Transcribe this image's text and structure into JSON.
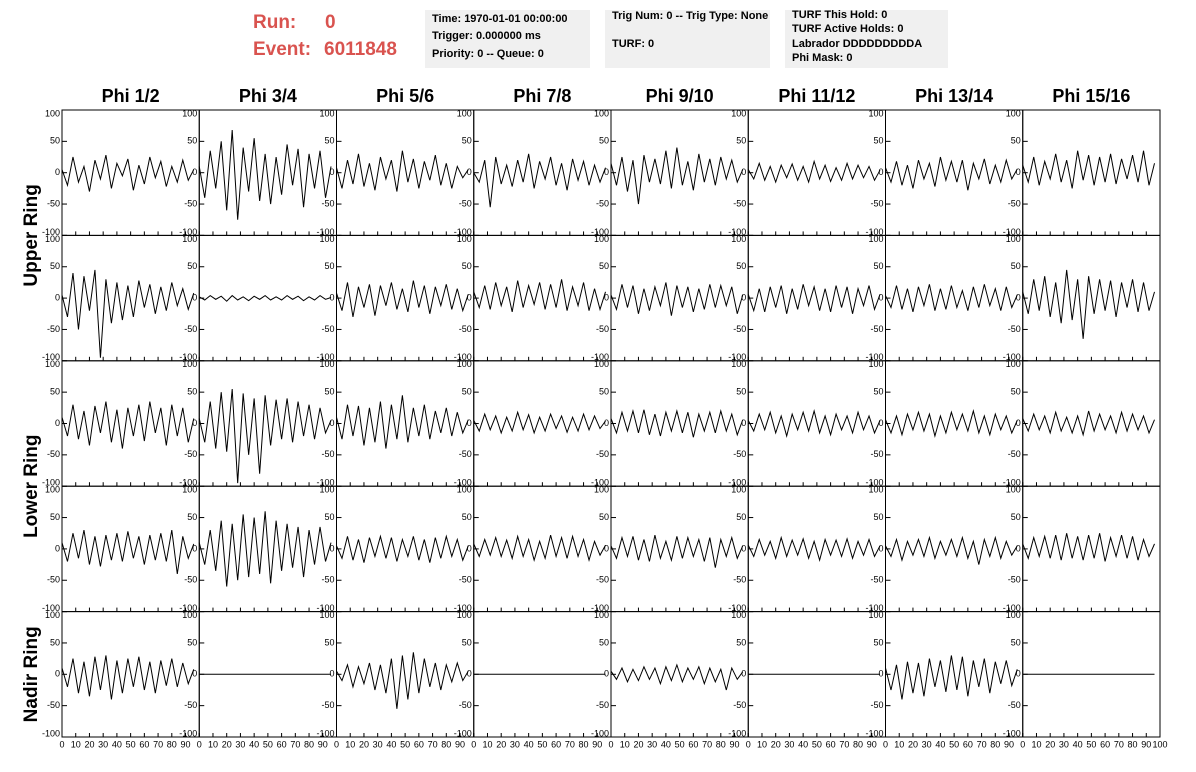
{
  "header": {
    "run_label": "Run:",
    "run": 0,
    "event_label": "Event:",
    "event": 6011848,
    "info_boxes": [
      [
        "Time: 1970-01-01 00:00:00",
        "Trigger: 0.000000 ms",
        "Priority: 0 -- Queue: 0"
      ],
      [
        "Trig Num: 0 -- Trig Type: None",
        "TURF: 0"
      ],
      [
        "TURF This Hold: 0",
        "TURF Active Holds: 0",
        "Labrador DDDDDDDDDA",
        "Phi Mask: 0"
      ]
    ]
  },
  "chart_data": {
    "type": "line",
    "columns": [
      "Phi 1/2",
      "Phi 3/4",
      "Phi 5/6",
      "Phi 7/8",
      "Phi 9/10",
      "Phi 11/12",
      "Phi 13/14",
      "Phi 15/16"
    ],
    "row_labels": [
      "Upper Ring",
      "Lower Ring",
      "Nadir Ring"
    ],
    "color": "#000000",
    "xlim": [
      0,
      100
    ],
    "xticks": [
      0,
      10,
      20,
      30,
      40,
      50,
      60,
      70,
      80,
      90,
      100
    ],
    "ylim": [
      -100,
      100
    ],
    "yticks": [
      -100,
      -50,
      0,
      50,
      100
    ],
    "x": [
      0,
      4,
      8,
      12,
      16,
      20,
      24,
      28,
      32,
      36,
      40,
      44,
      48,
      52,
      56,
      60,
      64,
      68,
      72,
      76,
      80,
      84,
      88,
      92,
      96
    ],
    "series": [
      {
        "values": [
          5,
          -20,
          25,
          -15,
          10,
          -30,
          20,
          -10,
          28,
          -25,
          15,
          -5,
          22,
          -28,
          12,
          -18,
          25,
          -8,
          18,
          -22,
          10,
          -15,
          20,
          -12,
          5
        ]
      },
      {
        "values": [
          10,
          -40,
          35,
          -25,
          50,
          -60,
          68,
          -75,
          40,
          -30,
          55,
          -45,
          30,
          -50,
          25,
          -35,
          45,
          -20,
          38,
          -55,
          30,
          -25,
          35,
          -40,
          10
        ]
      },
      {
        "values": [
          8,
          -25,
          20,
          -18,
          30,
          -22,
          15,
          -28,
          25,
          -10,
          20,
          -30,
          35,
          -15,
          22,
          -25,
          18,
          -12,
          28,
          -20,
          15,
          -25,
          10,
          -8,
          5
        ]
      },
      {
        "values": [
          0,
          -15,
          20,
          -55,
          25,
          -18,
          12,
          -22,
          20,
          -15,
          30,
          -25,
          18,
          -10,
          25,
          -20,
          15,
          -28,
          22,
          -12,
          18,
          -20,
          12,
          -15,
          8
        ]
      },
      {
        "values": [
          15,
          -20,
          25,
          -30,
          20,
          -50,
          28,
          -15,
          22,
          -18,
          35,
          -25,
          40,
          -20,
          18,
          -28,
          30,
          -15,
          22,
          -20,
          25,
          -10,
          20,
          -15,
          5
        ]
      },
      {
        "values": [
          5,
          -10,
          15,
          -12,
          10,
          -15,
          12,
          -8,
          14,
          -12,
          10,
          -15,
          18,
          -10,
          12,
          -14,
          8,
          -12,
          15,
          -10,
          12,
          -8,
          10,
          -12,
          4
        ]
      },
      {
        "values": [
          8,
          -15,
          18,
          -20,
          12,
          -25,
          20,
          -10,
          15,
          -22,
          25,
          -12,
          18,
          -15,
          20,
          -28,
          15,
          -10,
          22,
          -18,
          12,
          -15,
          20,
          -10,
          6
        ]
      },
      {
        "values": [
          12,
          -15,
          25,
          -20,
          18,
          -10,
          30,
          -15,
          20,
          -25,
          35,
          -12,
          28,
          -20,
          25,
          -15,
          30,
          -18,
          22,
          -10,
          28,
          -15,
          35,
          -20,
          15
        ]
      },
      {
        "values": [
          5,
          -30,
          40,
          -50,
          35,
          -20,
          45,
          -95,
          30,
          -40,
          25,
          -35,
          20,
          -30,
          28,
          -15,
          22,
          -25,
          18,
          -20,
          25,
          -12,
          15,
          -18,
          8
        ]
      },
      {
        "values": [
          2,
          -3,
          4,
          -2,
          3,
          -5,
          4,
          -3,
          2,
          -4,
          3,
          -2,
          4,
          -3,
          2,
          -3,
          4,
          -2,
          3,
          -4,
          2,
          -3,
          4,
          -2,
          1
        ]
      },
      {
        "values": [
          8,
          -20,
          25,
          -30,
          18,
          -15,
          22,
          -28,
          20,
          -12,
          25,
          -18,
          15,
          -22,
          28,
          -15,
          20,
          -25,
          18,
          -12,
          22,
          -18,
          15,
          -20,
          6
        ]
      },
      {
        "values": [
          10,
          -15,
          20,
          -18,
          25,
          -12,
          18,
          -22,
          28,
          -15,
          20,
          -10,
          25,
          -18,
          22,
          -15,
          30,
          -20,
          18,
          -12,
          25,
          -20,
          15,
          -18,
          10
        ]
      },
      {
        "values": [
          5,
          -18,
          22,
          -15,
          20,
          -25,
          15,
          -20,
          18,
          -12,
          25,
          -28,
          20,
          -15,
          18,
          -22,
          15,
          -18,
          22,
          -15,
          20,
          -12,
          18,
          -25,
          5
        ]
      },
      {
        "values": [
          6,
          -20,
          15,
          -22,
          18,
          -15,
          20,
          -25,
          15,
          -18,
          22,
          -12,
          18,
          -20,
          15,
          -22,
          20,
          -15,
          18,
          -25,
          15,
          -12,
          20,
          -18,
          6
        ]
      },
      {
        "values": [
          4,
          -15,
          20,
          -18,
          15,
          -22,
          18,
          -12,
          22,
          -20,
          15,
          -18,
          20,
          -15,
          12,
          -20,
          18,
          -15,
          22,
          -12,
          15,
          -20,
          18,
          -15,
          5
        ]
      },
      {
        "values": [
          10,
          -25,
          30,
          -20,
          35,
          -30,
          25,
          -40,
          45,
          -35,
          30,
          -65,
          35,
          -25,
          30,
          -20,
          28,
          -30,
          25,
          -15,
          30,
          -22,
          25,
          -20,
          10
        ]
      },
      {
        "values": [
          10,
          -20,
          30,
          -25,
          20,
          -35,
          28,
          -15,
          35,
          -30,
          22,
          -40,
          25,
          -20,
          30,
          -28,
          35,
          -15,
          25,
          -35,
          30,
          -20,
          25,
          -30,
          8
        ]
      },
      {
        "values": [
          8,
          -30,
          35,
          -40,
          50,
          -45,
          55,
          -95,
          48,
          -50,
          40,
          -80,
          45,
          -35,
          38,
          -25,
          40,
          -30,
          35,
          -20,
          30,
          -25,
          25,
          -15,
          5
        ]
      },
      {
        "values": [
          10,
          -25,
          30,
          -20,
          28,
          -35,
          25,
          -30,
          35,
          -40,
          30,
          -25,
          45,
          -30,
          25,
          -20,
          30,
          -25,
          20,
          -15,
          25,
          -20,
          18,
          -15,
          6
        ]
      },
      {
        "values": [
          5,
          -12,
          15,
          -10,
          12,
          -15,
          10,
          -12,
          18,
          -10,
          14,
          -15,
          10,
          -12,
          15,
          -8,
          12,
          -14,
          10,
          -12,
          15,
          -10,
          12,
          -8,
          4
        ]
      },
      {
        "values": [
          8,
          -15,
          18,
          -12,
          20,
          -15,
          22,
          -18,
          15,
          -20,
          18,
          -12,
          20,
          -15,
          18,
          -22,
          15,
          -12,
          18,
          -15,
          20,
          -12,
          15,
          -18,
          6
        ]
      },
      {
        "values": [
          5,
          -12,
          15,
          -10,
          18,
          -15,
          12,
          -20,
          15,
          -10,
          18,
          -12,
          20,
          -15,
          12,
          -18,
          15,
          -10,
          12,
          -15,
          18,
          -10,
          12,
          -15,
          5
        ]
      },
      {
        "values": [
          6,
          -15,
          12,
          -18,
          15,
          -10,
          18,
          -12,
          15,
          -20,
          12,
          -15,
          18,
          -10,
          15,
          -12,
          20,
          -15,
          12,
          -18,
          15,
          -10,
          12,
          -15,
          5
        ]
      },
      {
        "values": [
          8,
          -12,
          15,
          -10,
          12,
          -15,
          18,
          -12,
          10,
          -15,
          12,
          -18,
          20,
          -12,
          15,
          -10,
          12,
          -15,
          18,
          -12,
          15,
          -10,
          12,
          -15,
          6
        ]
      },
      {
        "values": [
          10,
          -20,
          25,
          -15,
          30,
          -25,
          20,
          -28,
          22,
          -18,
          25,
          -20,
          28,
          -15,
          20,
          -25,
          22,
          -18,
          25,
          -20,
          30,
          -40,
          20,
          -15,
          8
        ]
      },
      {
        "values": [
          10,
          -25,
          30,
          -35,
          45,
          -60,
          40,
          -50,
          55,
          -45,
          50,
          -40,
          60,
          -55,
          45,
          -35,
          40,
          -30,
          35,
          -45,
          30,
          -25,
          35,
          -20,
          10
        ]
      },
      {
        "values": [
          5,
          -15,
          20,
          -18,
          15,
          -22,
          18,
          -12,
          20,
          -15,
          18,
          -20,
          15,
          -12,
          20,
          -18,
          15,
          -22,
          18,
          -15,
          20,
          -12,
          15,
          -18,
          5
        ]
      },
      {
        "values": [
          8,
          -12,
          15,
          -10,
          18,
          -12,
          14,
          -15,
          20,
          -12,
          15,
          -18,
          12,
          -15,
          22,
          -12,
          18,
          -15,
          20,
          -12,
          15,
          -18,
          12,
          -10,
          6
        ]
      },
      {
        "values": [
          5,
          -15,
          18,
          -12,
          20,
          -18,
          15,
          -20,
          22,
          -15,
          12,
          -18,
          20,
          -15,
          18,
          -12,
          15,
          -20,
          18,
          -30,
          15,
          -12,
          18,
          -15,
          5
        ]
      },
      {
        "values": [
          6,
          -12,
          15,
          -10,
          12,
          -15,
          18,
          -12,
          14,
          -10,
          16,
          -15,
          12,
          -18,
          15,
          -10,
          14,
          -12,
          16,
          -15,
          12,
          -10,
          15,
          -12,
          5
        ]
      },
      {
        "values": [
          5,
          -12,
          15,
          -18,
          12,
          -10,
          15,
          -12,
          18,
          -15,
          12,
          -10,
          15,
          -12,
          18,
          -15,
          12,
          -25,
          15,
          -12,
          18,
          -15,
          12,
          -10,
          5
        ]
      },
      {
        "values": [
          8,
          -15,
          18,
          -12,
          20,
          -15,
          22,
          -18,
          25,
          -15,
          20,
          -18,
          22,
          -15,
          25,
          -20,
          18,
          -12,
          22,
          -15,
          20,
          -18,
          15,
          -12,
          8
        ]
      },
      {
        "values": [
          10,
          -20,
          25,
          -30,
          20,
          -35,
          28,
          -25,
          30,
          -40,
          22,
          -30,
          25,
          -20,
          28,
          -25,
          20,
          -30,
          22,
          -18,
          25,
          -20,
          18,
          -15,
          8
        ]
      },
      {
        "values": [
          0,
          0,
          0,
          0,
          0,
          0,
          0,
          0,
          0,
          0,
          0,
          0,
          0,
          0,
          0,
          0,
          0,
          0,
          0,
          0,
          0,
          0,
          0,
          0,
          0
        ]
      },
      {
        "values": [
          5,
          -10,
          15,
          -20,
          12,
          -15,
          18,
          -25,
          15,
          -30,
          25,
          -55,
          30,
          -40,
          35,
          -30,
          25,
          -20,
          18,
          -25,
          15,
          -12,
          18,
          -10,
          5
        ]
      },
      {
        "values": [
          0,
          0,
          0,
          0,
          0,
          0,
          0,
          0,
          0,
          0,
          0,
          0,
          0,
          0,
          0,
          0,
          0,
          0,
          0,
          0,
          0,
          0,
          0,
          0,
          0
        ]
      },
      {
        "values": [
          5,
          -8,
          10,
          -12,
          8,
          -10,
          12,
          -8,
          10,
          -15,
          12,
          -10,
          15,
          -12,
          10,
          -8,
          12,
          -15,
          10,
          -12,
          8,
          -25,
          10,
          -8,
          4
        ]
      },
      {
        "values": [
          0,
          0,
          0,
          0,
          0,
          0,
          0,
          0,
          0,
          0,
          0,
          0,
          0,
          0,
          0,
          0,
          0,
          0,
          0,
          0,
          0,
          0,
          0,
          0,
          0
        ]
      },
      {
        "values": [
          10,
          -25,
          15,
          -40,
          20,
          -30,
          18,
          -35,
          25,
          -20,
          22,
          -28,
          30,
          -25,
          28,
          -35,
          22,
          -20,
          25,
          -30,
          20,
          -15,
          22,
          -18,
          8
        ]
      },
      {
        "values": [
          0,
          0,
          0,
          0,
          0,
          0,
          0,
          0,
          0,
          0,
          0,
          0,
          0,
          0,
          0,
          0,
          0,
          0,
          0,
          0,
          0,
          0,
          0,
          0,
          0
        ]
      }
    ]
  }
}
